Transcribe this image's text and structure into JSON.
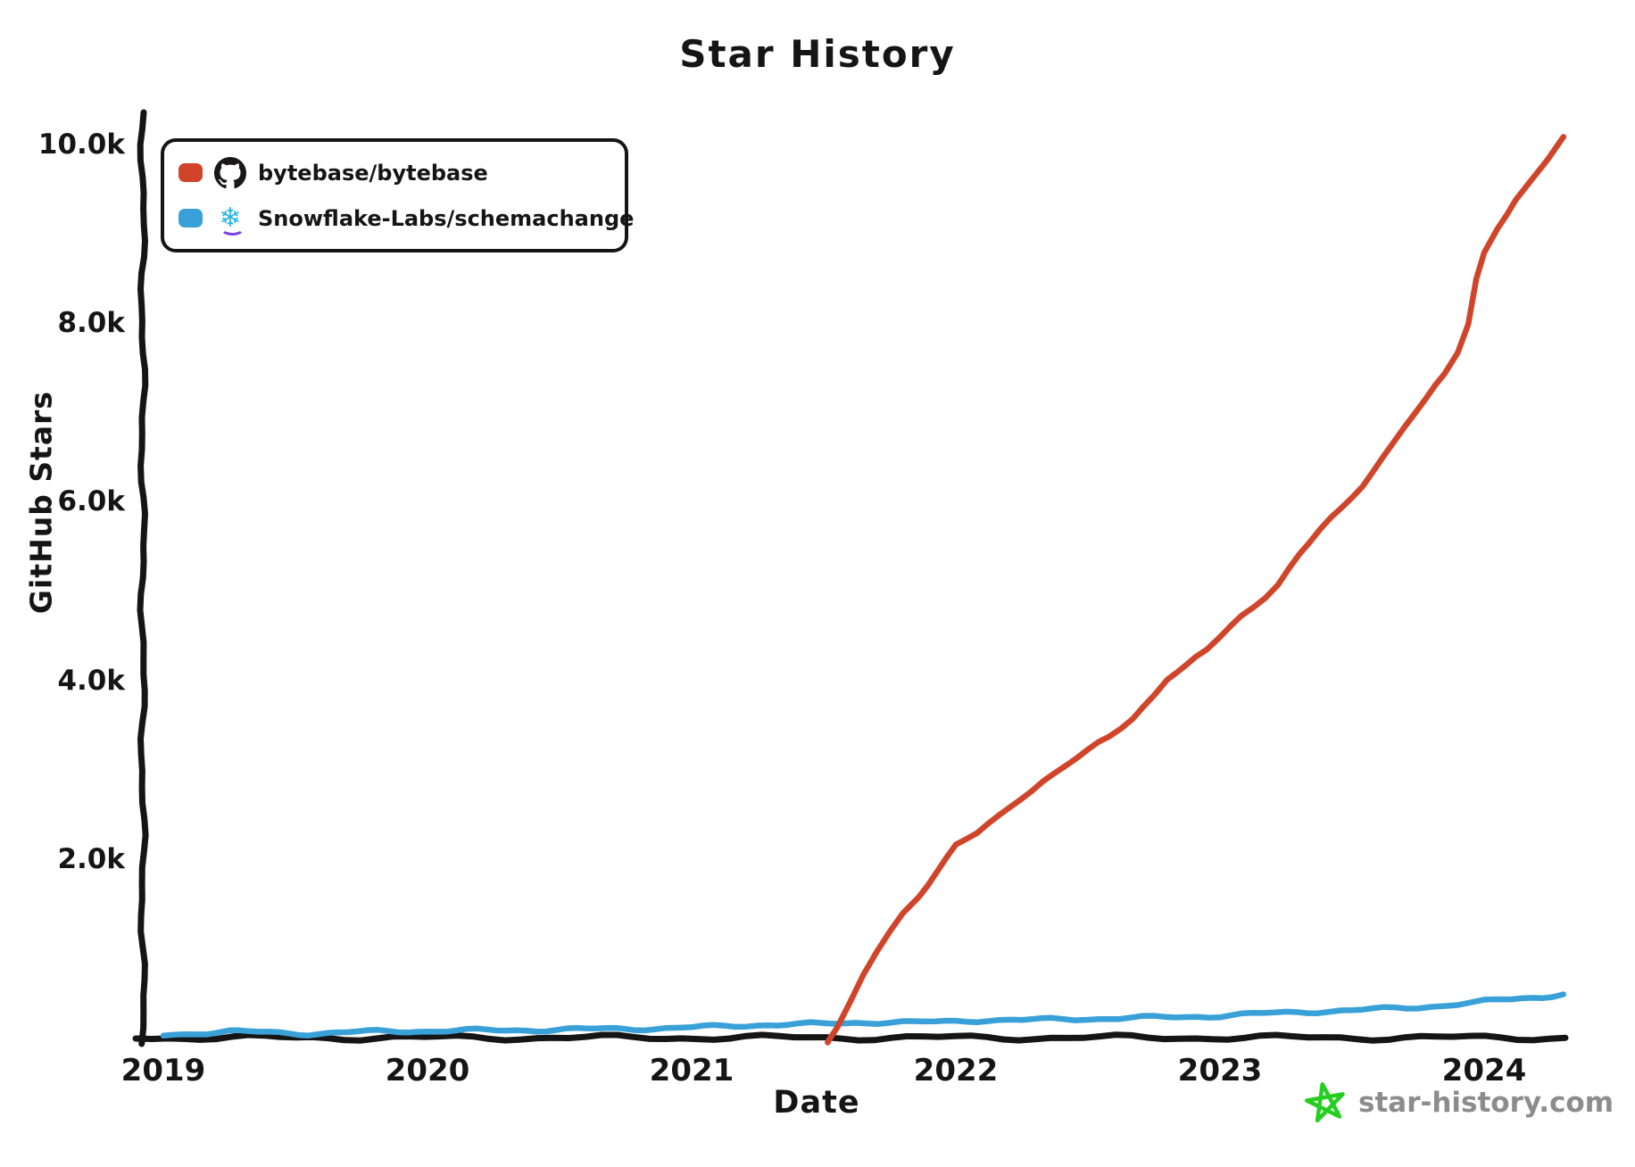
{
  "title": "Star History",
  "axes": {
    "x_label": "Date",
    "y_label": "GitHub Stars",
    "x_ticks": [
      "2019",
      "2020",
      "2021",
      "2022",
      "2023",
      "2024"
    ],
    "y_ticks": [
      "2.0k",
      "4.0k",
      "6.0k",
      "8.0k",
      "10.0k"
    ]
  },
  "legend": [
    {
      "label": "bytebase/bytebase",
      "color": "#D0452A",
      "icon": "github-icon"
    },
    {
      "label": "Snowflake-Labs/schemachange",
      "color": "#39A1D8",
      "icon": "snowflake-icon"
    }
  ],
  "watermark": {
    "text": "star-history.com",
    "text_color": "#8c8c8c",
    "star_color": "#26CE21"
  },
  "colors": {
    "axis": "#151515",
    "background": "#ffffff"
  },
  "chart_data": {
    "type": "line",
    "title": "Star History",
    "xlabel": "Date",
    "ylabel": "GitHub Stars",
    "x_range": [
      2019,
      2024.35
    ],
    "ylim": [
      0,
      10000
    ],
    "x_tick_years": [
      2019,
      2020,
      2021,
      2022,
      2023,
      2024
    ],
    "y_tick_values": [
      2000,
      4000,
      6000,
      8000,
      10000
    ],
    "grid": false,
    "legend_position": "top-left",
    "series": [
      {
        "name": "bytebase/bytebase",
        "color": "#D0452A",
        "points": [
          [
            2021.515,
            -30
          ],
          [
            2021.52,
            0
          ],
          [
            2021.55,
            120
          ],
          [
            2021.6,
            380
          ],
          [
            2021.65,
            680
          ],
          [
            2021.7,
            950
          ],
          [
            2021.75,
            1180
          ],
          [
            2021.8,
            1390
          ],
          [
            2021.86,
            1600
          ],
          [
            2021.93,
            1880
          ],
          [
            2022.0,
            2150
          ],
          [
            2022.08,
            2280
          ],
          [
            2022.16,
            2460
          ],
          [
            2022.25,
            2700
          ],
          [
            2022.33,
            2880
          ],
          [
            2022.42,
            3060
          ],
          [
            2022.5,
            3200
          ],
          [
            2022.58,
            3360
          ],
          [
            2022.67,
            3580
          ],
          [
            2022.75,
            3850
          ],
          [
            2022.8,
            4030
          ],
          [
            2022.87,
            4150
          ],
          [
            2022.95,
            4330
          ],
          [
            2023.0,
            4480
          ],
          [
            2023.08,
            4720
          ],
          [
            2023.17,
            4950
          ],
          [
            2023.22,
            5080
          ],
          [
            2023.3,
            5400
          ],
          [
            2023.38,
            5680
          ],
          [
            2023.46,
            5920
          ],
          [
            2023.54,
            6200
          ],
          [
            2023.62,
            6520
          ],
          [
            2023.7,
            6850
          ],
          [
            2023.78,
            7130
          ],
          [
            2023.85,
            7420
          ],
          [
            2023.9,
            7680
          ],
          [
            2023.94,
            8000
          ],
          [
            2023.97,
            8500
          ],
          [
            2024.0,
            8800
          ],
          [
            2024.05,
            9080
          ],
          [
            2024.12,
            9380
          ],
          [
            2024.18,
            9580
          ],
          [
            2024.24,
            9820
          ],
          [
            2024.3,
            10080
          ]
        ]
      },
      {
        "name": "Snowflake-Labs/schemachange",
        "color": "#39A1D8",
        "points": [
          [
            2019.0,
            25
          ],
          [
            2019.12,
            50
          ],
          [
            2019.25,
            70
          ],
          [
            2019.4,
            55
          ],
          [
            2019.55,
            45
          ],
          [
            2019.7,
            60
          ],
          [
            2019.85,
            70
          ],
          [
            2020.0,
            75
          ],
          [
            2020.15,
            80
          ],
          [
            2020.3,
            82
          ],
          [
            2020.45,
            88
          ],
          [
            2020.6,
            95
          ],
          [
            2020.75,
            100
          ],
          [
            2020.9,
            105
          ],
          [
            2021.0,
            112
          ],
          [
            2021.12,
            128
          ],
          [
            2021.25,
            142
          ],
          [
            2021.4,
            150
          ],
          [
            2021.5,
            152
          ],
          [
            2021.62,
            168
          ],
          [
            2021.75,
            176
          ],
          [
            2021.85,
            170
          ],
          [
            2022.0,
            182
          ],
          [
            2022.12,
            200
          ],
          [
            2022.25,
            196
          ],
          [
            2022.4,
            205
          ],
          [
            2022.5,
            212
          ],
          [
            2022.62,
            218
          ],
          [
            2022.75,
            226
          ],
          [
            2022.87,
            232
          ],
          [
            2023.0,
            246
          ],
          [
            2023.12,
            262
          ],
          [
            2023.25,
            280
          ],
          [
            2023.37,
            295
          ],
          [
            2023.5,
            305
          ],
          [
            2023.62,
            322
          ],
          [
            2023.75,
            342
          ],
          [
            2023.85,
            362
          ],
          [
            2023.95,
            385
          ],
          [
            2024.05,
            420
          ],
          [
            2024.15,
            445
          ],
          [
            2024.22,
            455
          ],
          [
            2024.3,
            495
          ]
        ]
      }
    ]
  }
}
